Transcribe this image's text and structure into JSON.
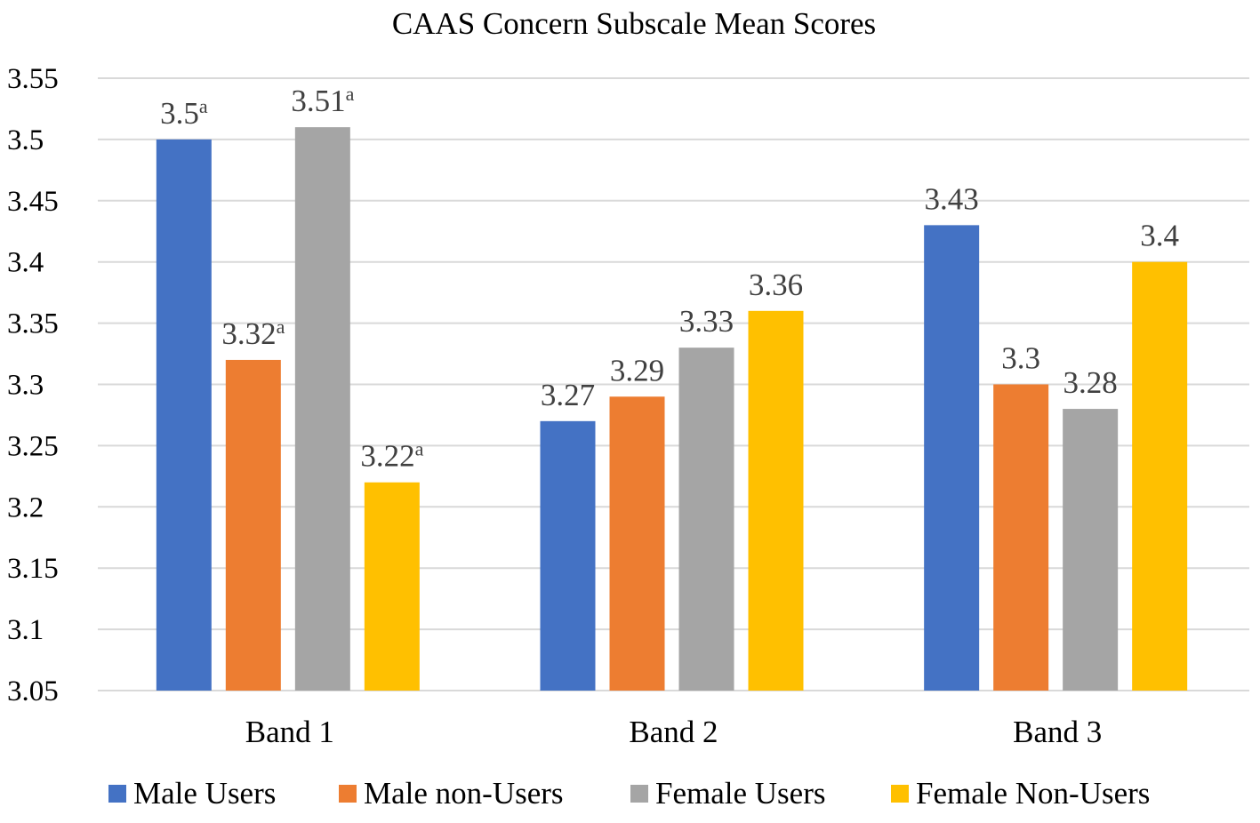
{
  "chart_data": {
    "type": "bar",
    "title": "CAAS Concern Subscale Mean Scores",
    "xlabel": "",
    "ylabel": "",
    "ylim": [
      3.05,
      3.55
    ],
    "yticks": [
      "3.05",
      "3.1",
      "3.15",
      "3.2",
      "3.25",
      "3.3",
      "3.35",
      "3.4",
      "3.45",
      "3.5",
      "3.55"
    ],
    "ytick_values": [
      3.05,
      3.1,
      3.15,
      3.2,
      3.25,
      3.3,
      3.35,
      3.4,
      3.45,
      3.5,
      3.55
    ],
    "grid": true,
    "legend_position": "bottom",
    "categories": [
      "Band 1",
      "Band 2",
      "Band 3"
    ],
    "series": [
      {
        "name": "Male Users",
        "color": "#4472C4",
        "values": [
          3.5,
          3.27,
          3.43
        ],
        "labels": [
          "3.5",
          "3.27",
          "3.43"
        ],
        "superscripts": [
          "a",
          "",
          ""
        ]
      },
      {
        "name": "Male non-Users",
        "color": "#ED7D31",
        "values": [
          3.32,
          3.29,
          3.3
        ],
        "labels": [
          "3.32",
          "3.29",
          "3.3"
        ],
        "superscripts": [
          "a",
          "",
          ""
        ]
      },
      {
        "name": "Female Users",
        "color": "#A5A5A5",
        "values": [
          3.51,
          3.33,
          3.28
        ],
        "labels": [
          "3.51",
          "3.33",
          "3.28"
        ],
        "superscripts": [
          "a",
          "",
          ""
        ]
      },
      {
        "name": "Female Non-Users",
        "color": "#FFC000",
        "values": [
          3.22,
          3.36,
          3.4
        ],
        "labels": [
          "3.22",
          "3.36",
          "3.4"
        ],
        "superscripts": [
          "a",
          "",
          ""
        ]
      }
    ]
  }
}
